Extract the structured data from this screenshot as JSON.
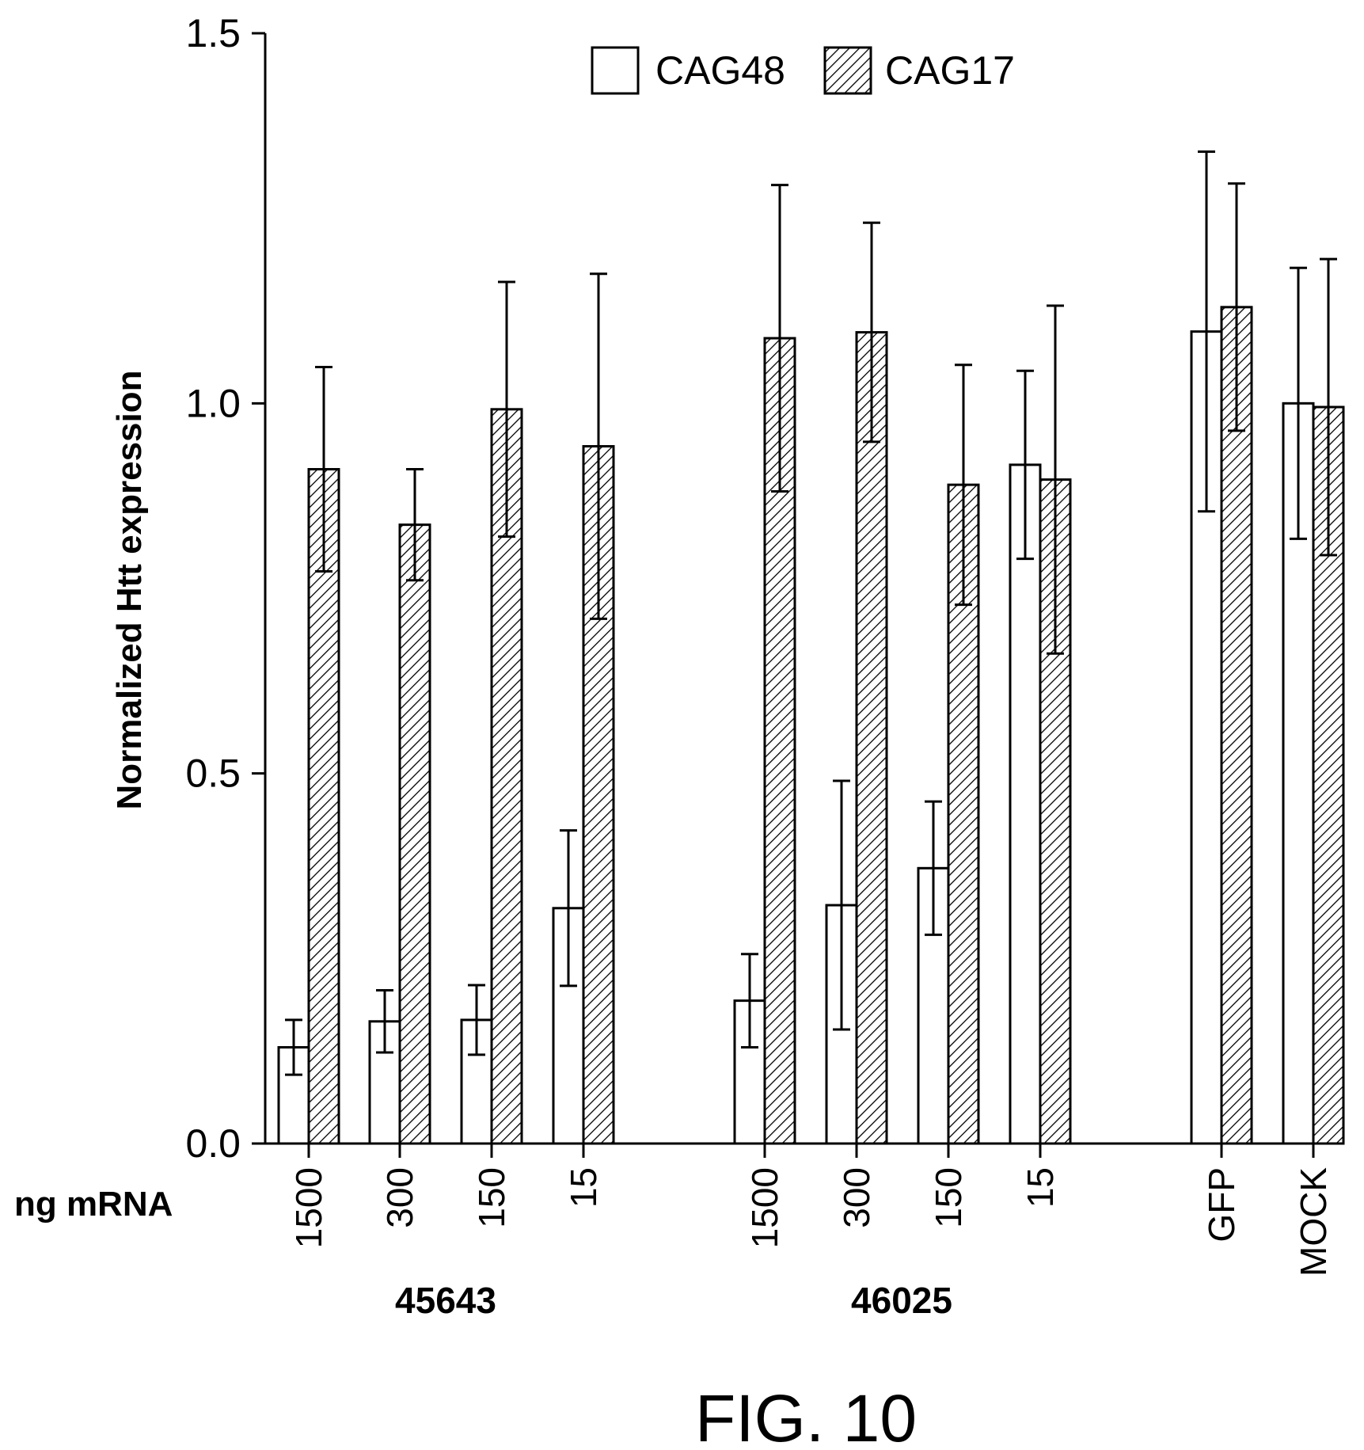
{
  "chart_data": {
    "type": "bar",
    "ylabel": "Normalized Htt expression",
    "x_row_label": "ng mRNA",
    "ylim": [
      0,
      1.5
    ],
    "yticks": [
      "0.0",
      "0.5",
      "1.0",
      "1.5"
    ],
    "legend": {
      "placement": "top",
      "entries": [
        "CAG48",
        "CAG17"
      ]
    },
    "categories": [
      "1500",
      "300",
      "150",
      "15",
      "1500",
      "300",
      "150",
      "15",
      "GFP",
      "MOCK"
    ],
    "groups": [
      {
        "label": "45643",
        "categories": [
          "1500",
          "300",
          "150",
          "15"
        ]
      },
      {
        "label": "46025",
        "categories": [
          "1500",
          "300",
          "150",
          "15"
        ]
      },
      {
        "label": "",
        "categories": [
          "GFP",
          "MOCK"
        ]
      }
    ],
    "series": [
      {
        "name": "CAG48",
        "fill": "white",
        "values": [
          0.13,
          0.165,
          0.167,
          0.318,
          0.193,
          0.322,
          0.372,
          0.917,
          1.097,
          1.0
        ],
        "error": [
          0.037,
          0.042,
          0.047,
          0.105,
          0.063,
          0.168,
          0.09,
          0.127,
          0.243,
          0.183
        ]
      },
      {
        "name": "CAG17",
        "fill": "hatched",
        "values": [
          0.911,
          0.836,
          0.992,
          0.942,
          1.088,
          1.096,
          0.89,
          0.897,
          1.13,
          0.995
        ],
        "error": [
          0.138,
          0.075,
          0.172,
          0.233,
          0.207,
          0.148,
          0.162,
          0.235,
          0.167,
          0.2
        ]
      }
    ],
    "caption": "FIG. 10"
  }
}
